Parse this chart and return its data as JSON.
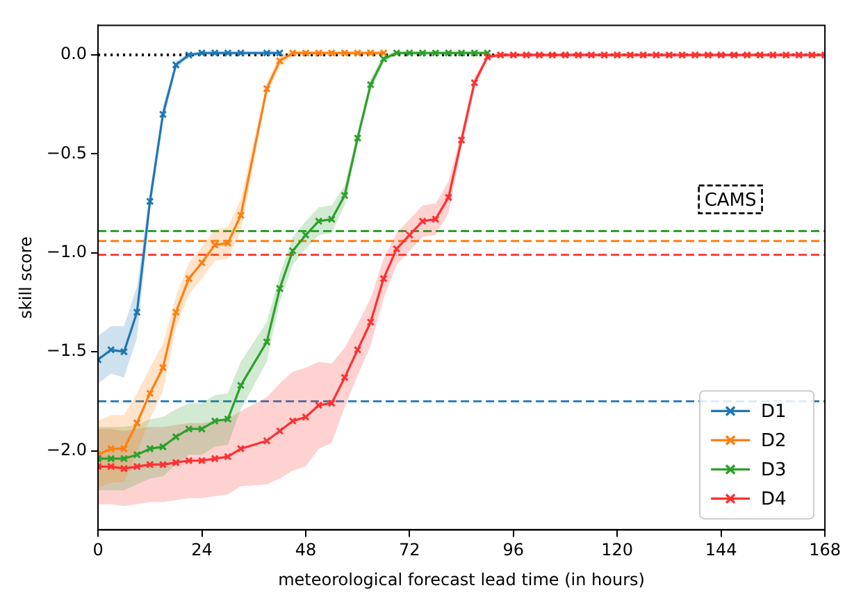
{
  "chart_data": {
    "type": "line",
    "xlabel": "meteorological forecast lead time (in hours)",
    "ylabel": "skill score",
    "x": [
      0,
      3,
      6,
      9,
      12,
      15,
      18,
      21,
      24,
      27,
      30,
      33,
      39,
      42,
      45,
      48,
      51,
      54,
      57,
      60,
      63,
      66,
      69,
      72,
      75,
      78,
      81,
      84,
      87,
      90,
      93,
      96,
      99,
      102,
      105,
      108,
      111,
      114,
      117,
      120,
      123,
      126,
      129,
      132,
      135,
      138,
      141,
      144,
      147,
      150,
      153,
      156,
      159,
      162,
      165,
      168
    ],
    "series": [
      {
        "name": "D1",
        "color": "#1f77b4",
        "values": [
          -1.54,
          -1.49,
          -1.5,
          -1.3,
          -0.74,
          -0.3,
          -0.05,
          0.0,
          0.01,
          0.01,
          0.01,
          0.01,
          0.01,
          0.01,
          null,
          null,
          null,
          null,
          null,
          null,
          null,
          null,
          null,
          null,
          null,
          null,
          null,
          null,
          null,
          null,
          null,
          null,
          null,
          null,
          null,
          null,
          null,
          null,
          null,
          null,
          null,
          null,
          null,
          null,
          null,
          null,
          null,
          null,
          null,
          null,
          null,
          null,
          null,
          null,
          null,
          null
        ],
        "lower": [
          -1.66,
          -1.61,
          -1.63,
          -1.43,
          -0.79,
          -0.34,
          -0.07,
          -0.01,
          0,
          0,
          0,
          0,
          0,
          0,
          null,
          null,
          null,
          null,
          null,
          null,
          null,
          null,
          null,
          null,
          null,
          null,
          null,
          null,
          null,
          null,
          null,
          null,
          null,
          null,
          null,
          null,
          null,
          null,
          null,
          null,
          null,
          null,
          null,
          null,
          null,
          null,
          null,
          null,
          null,
          null,
          null,
          null,
          null,
          null,
          null,
          null
        ],
        "upper": [
          -1.42,
          -1.37,
          -1.37,
          -1.17,
          -0.69,
          -0.26,
          -0.03,
          0.01,
          0.02,
          0.02,
          0.02,
          0.02,
          0.02,
          0.02,
          null,
          null,
          null,
          null,
          null,
          null,
          null,
          null,
          null,
          null,
          null,
          null,
          null,
          null,
          null,
          null,
          null,
          null,
          null,
          null,
          null,
          null,
          null,
          null,
          null,
          null,
          null,
          null,
          null,
          null,
          null,
          null,
          null,
          null,
          null,
          null,
          null,
          null,
          null,
          null,
          null,
          null
        ]
      },
      {
        "name": "D2",
        "color": "#ff7f0e",
        "values": [
          -2.02,
          -1.99,
          -1.99,
          -1.86,
          -1.71,
          -1.58,
          -1.3,
          -1.13,
          -1.05,
          -0.96,
          -0.95,
          -0.81,
          -0.17,
          -0.03,
          0.01,
          0.01,
          0.01,
          0.01,
          0.01,
          0.01,
          0.01,
          0.01,
          null,
          null,
          null,
          null,
          null,
          null,
          null,
          null,
          null,
          null,
          null,
          null,
          null,
          null,
          null,
          null,
          null,
          null,
          null,
          null,
          null,
          null,
          null,
          null,
          null,
          null,
          null,
          null,
          null,
          null,
          null,
          null,
          null,
          null
        ],
        "lower": [
          -2.19,
          -2.16,
          -2.16,
          -2.01,
          -1.84,
          -1.7,
          -1.38,
          -1.21,
          -1.13,
          -1.04,
          -1.03,
          -0.89,
          -0.2,
          -0.06,
          0,
          0,
          0,
          0,
          0,
          0,
          0,
          0,
          null,
          null,
          null,
          null,
          null,
          null,
          null,
          null,
          null,
          null,
          null,
          null,
          null,
          null,
          null,
          null,
          null,
          null,
          null,
          null,
          null,
          null,
          null,
          null,
          null,
          null,
          null,
          null,
          null,
          null,
          null,
          null,
          null,
          null
        ],
        "upper": [
          -1.85,
          -1.82,
          -1.82,
          -1.71,
          -1.58,
          -1.46,
          -1.22,
          -1.05,
          -0.97,
          -0.88,
          -0.87,
          -0.73,
          -0.14,
          0.0,
          0.02,
          0.02,
          0.02,
          0.02,
          0.02,
          0.02,
          0.02,
          0.02,
          null,
          null,
          null,
          null,
          null,
          null,
          null,
          null,
          null,
          null,
          null,
          null,
          null,
          null,
          null,
          null,
          null,
          null,
          null,
          null,
          null,
          null,
          null,
          null,
          null,
          null,
          null,
          null,
          null,
          null,
          null,
          null,
          null,
          null
        ]
      },
      {
        "name": "D3",
        "color": "#2ca02c",
        "values": [
          -2.04,
          -2.04,
          -2.04,
          -2.02,
          -1.99,
          -1.98,
          -1.93,
          -1.89,
          -1.89,
          -1.85,
          -1.84,
          -1.67,
          -1.45,
          -1.18,
          -0.99,
          -0.91,
          -0.84,
          -0.83,
          -0.71,
          -0.42,
          -0.15,
          -0.02,
          0.01,
          0.01,
          0.01,
          0.01,
          0.01,
          0.01,
          0.01,
          0.01,
          null,
          null,
          null,
          null,
          null,
          null,
          null,
          null,
          null,
          null,
          null,
          null,
          null,
          null,
          null,
          null,
          null,
          null,
          null,
          null,
          null,
          null,
          null,
          null,
          null,
          null
        ],
        "lower": [
          -2.2,
          -2.2,
          -2.2,
          -2.17,
          -2.14,
          -2.13,
          -2.07,
          -2.02,
          -2.02,
          -1.98,
          -1.97,
          -1.79,
          -1.55,
          -1.25,
          -1.06,
          -0.98,
          -0.91,
          -0.9,
          -0.76,
          -0.45,
          -0.18,
          -0.04,
          0,
          0,
          0,
          0,
          0,
          0,
          0,
          0,
          null,
          null,
          null,
          null,
          null,
          null,
          null,
          null,
          null,
          null,
          null,
          null,
          null,
          null,
          null,
          null,
          null,
          null,
          null,
          null,
          null,
          null,
          null,
          null,
          null,
          null
        ],
        "upper": [
          -1.88,
          -1.88,
          -1.88,
          -1.87,
          -1.84,
          -1.83,
          -1.79,
          -1.76,
          -1.76,
          -1.72,
          -1.71,
          -1.55,
          -1.35,
          -1.11,
          -0.92,
          -0.84,
          -0.77,
          -0.76,
          -0.66,
          -0.39,
          -0.12,
          0.0,
          0.02,
          0.02,
          0.02,
          0.02,
          0.02,
          0.02,
          0.02,
          0.02,
          null,
          null,
          null,
          null,
          null,
          null,
          null,
          null,
          null,
          null,
          null,
          null,
          null,
          null,
          null,
          null,
          null,
          null,
          null,
          null,
          null,
          null,
          null,
          null,
          null,
          null
        ]
      },
      {
        "name": "D4",
        "color": "#ff3030",
        "values": [
          -2.08,
          -2.08,
          -2.09,
          -2.08,
          -2.07,
          -2.07,
          -2.06,
          -2.05,
          -2.05,
          -2.04,
          -2.03,
          -1.99,
          -1.95,
          -1.9,
          -1.85,
          -1.83,
          -1.77,
          -1.76,
          -1.63,
          -1.49,
          -1.35,
          -1.13,
          -0.98,
          -0.91,
          -0.84,
          -0.83,
          -0.72,
          -0.43,
          -0.14,
          -0.01,
          0,
          0,
          0,
          0,
          0,
          0,
          0,
          0,
          0,
          0,
          0,
          0,
          0,
          0,
          0,
          0,
          0,
          0,
          0,
          0,
          0,
          0,
          0,
          0,
          0,
          0
        ],
        "lower": [
          -2.27,
          -2.27,
          -2.28,
          -2.27,
          -2.26,
          -2.26,
          -2.25,
          -2.24,
          -2.24,
          -2.23,
          -2.22,
          -2.18,
          -2.17,
          -2.14,
          -2.1,
          -2.08,
          -1.99,
          -1.96,
          -1.78,
          -1.62,
          -1.47,
          -1.23,
          -1.06,
          -0.99,
          -0.92,
          -0.91,
          -0.8,
          -0.47,
          -0.17,
          -0.02,
          -0.01,
          -0.01,
          -0.01,
          -0.01,
          -0.01,
          -0.01,
          -0.01,
          -0.01,
          -0.01,
          -0.01,
          -0.01,
          -0.01,
          -0.01,
          -0.01,
          -0.01,
          -0.01,
          -0.01,
          -0.01,
          -0.01,
          -0.01,
          -0.01,
          -0.01,
          -0.01,
          -0.01,
          -0.01,
          -0.01
        ],
        "upper": [
          -1.89,
          -1.89,
          -1.9,
          -1.89,
          -1.88,
          -1.88,
          -1.87,
          -1.86,
          -1.86,
          -1.85,
          -1.84,
          -1.8,
          -1.73,
          -1.66,
          -1.6,
          -1.58,
          -1.55,
          -1.56,
          -1.48,
          -1.36,
          -1.23,
          -1.03,
          -0.9,
          -0.83,
          -0.76,
          -0.75,
          -0.64,
          -0.39,
          -0.11,
          0.0,
          0.01,
          0.01,
          0.01,
          0.01,
          0.01,
          0.01,
          0.01,
          0.01,
          0.01,
          0.01,
          0.01,
          0.01,
          0.01,
          0.01,
          0.01,
          0.01,
          0.01,
          0.01,
          0.01,
          0.01,
          0.01,
          0.01,
          0.01,
          0.01,
          0.01,
          0.01
        ]
      }
    ],
    "xlim": [
      0,
      168
    ],
    "xticks": [
      0,
      24,
      48,
      72,
      96,
      120,
      144,
      168
    ],
    "ylim": [
      -2.4,
      0.15
    ],
    "yticks": [
      {
        "value": -2.0,
        "label": "−2.0"
      },
      {
        "value": -1.5,
        "label": "−1.5"
      },
      {
        "value": -1.0,
        "label": "−1.0"
      },
      {
        "value": -0.5,
        "label": "−0.5"
      },
      {
        "value": 0,
        "label": "0.0"
      }
    ],
    "ref_lines": [
      {
        "axis": "y",
        "value": 0,
        "color": "#000000",
        "line_style": "dotted"
      },
      {
        "axis": "y",
        "value": -0.89,
        "color": "#2ca02c",
        "line_style": "dashed"
      },
      {
        "axis": "y",
        "value": -0.94,
        "color": "#ff7f0e",
        "line_style": "dashed"
      },
      {
        "axis": "y",
        "value": -1.01,
        "color": "#ff3030",
        "line_style": "dashed"
      },
      {
        "axis": "y",
        "value": -1.75,
        "color": "#1f77b4",
        "line_style": "dashed"
      }
    ],
    "annotations": [
      "CAMS"
    ],
    "grid": false,
    "legend": "bottom right",
    "marker": "cross",
    "line_style": "solid"
  }
}
